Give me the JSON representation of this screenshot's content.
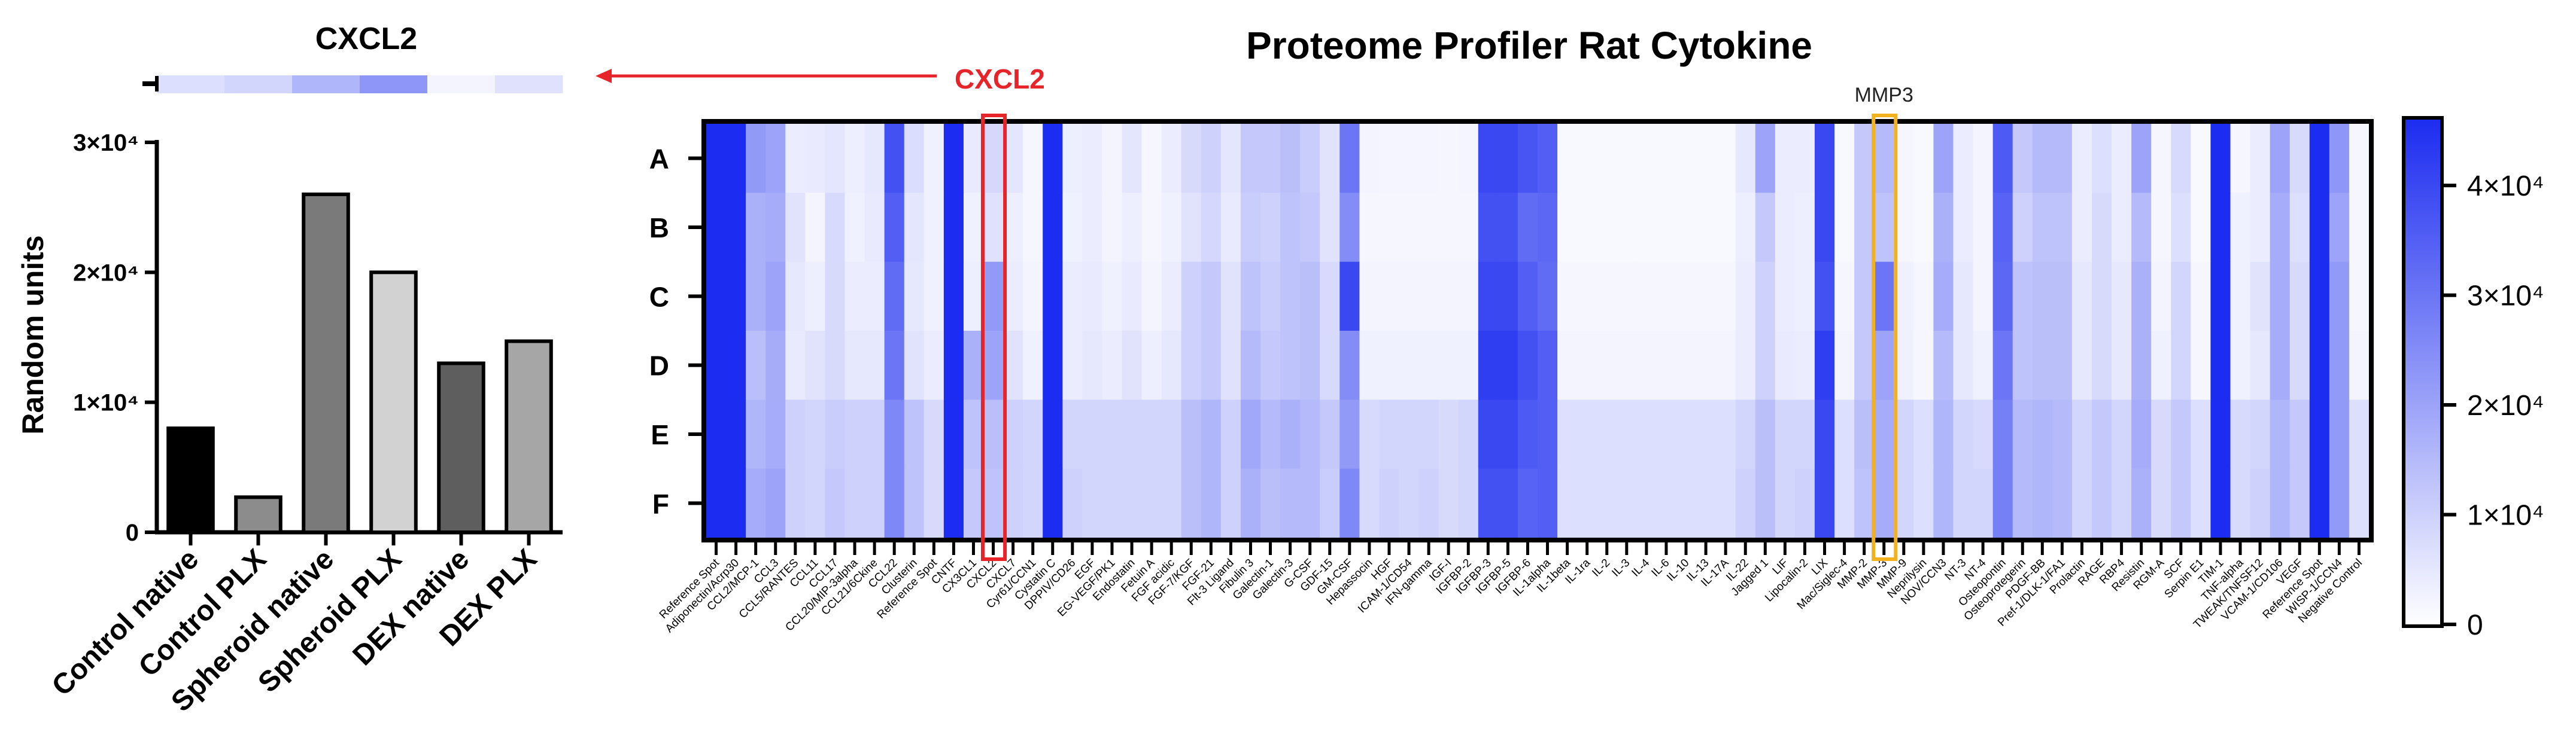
{
  "chart_data": [
    {
      "type": "bar",
      "title": "CXCL2",
      "xlabel": "",
      "ylabel": "Random units",
      "ylim": [
        0,
        30000
      ],
      "yticks": [
        0,
        10000,
        20000,
        30000
      ],
      "ytick_labels": [
        "0",
        "1×10⁴",
        "2×10⁴",
        "3×10⁴"
      ],
      "categories": [
        "Control native",
        "Control PLX",
        "Spheroid native",
        "Spheroid PLX",
        "DEX native",
        "DEX PLX"
      ],
      "values": [
        8000,
        2700,
        26000,
        20000,
        13000,
        14700
      ],
      "bar_colors": [
        "#000000",
        "#8c8c8c",
        "#7a7a7a",
        "#d2d2d2",
        "#5e5e5e",
        "#a6a6a6"
      ],
      "strip_values": [
        7000,
        9000,
        16000,
        23000,
        2500,
        6500
      ],
      "arrow_label": "CXCL2"
    },
    {
      "type": "heatmap",
      "title": "Proteome Profiler Rat Cytokine",
      "rows": [
        "A",
        "B",
        "C",
        "D",
        "E",
        "F"
      ],
      "columns": [
        "Reference Spot",
        "Adiponectin/Acrp30",
        "CCL2/MCP-1",
        "CCL3",
        "CCL5/RANTES",
        "CCL11",
        "CCL17",
        "CCL20/MIP-3alpha",
        "CCL21/6Ckine",
        "CCL22",
        "Clusterin",
        "Reference Spot",
        "CNTF",
        "CX3CL1",
        "CXCL2",
        "CXCL7",
        "Cyr61/CCN1",
        "Cystatin C",
        "DPPIV/CD26",
        "EGF",
        "EG-VEGF/PK1",
        "Endostatin",
        "Fetuin A",
        "FGF acidic",
        "FGF-7/KGF",
        "FGF-21",
        "Flt-3 Ligand",
        "Fibulin 3",
        "Galectin-1",
        "Galectin-3",
        "G-CSF",
        "GDF-15",
        "GM-CSF",
        "Hepassocin",
        "HGF",
        "ICAM-1/CD54",
        "IFN-gamma",
        "IGF-I",
        "IGFBP-2",
        "IGFBP-3",
        "IGFBP-5",
        "IGFBP-6",
        "IL-1alpha",
        "IL-1beta",
        "IL-1ra",
        "IL-2",
        "IL-3",
        "IL-4",
        "IL-6",
        "IL-10",
        "IL-13",
        "IL-17A",
        "IL-22",
        "Jagged 1",
        "LIF",
        "Lipocalin-2",
        "LIX",
        "Mac/Siglec-4",
        "MMP-2",
        "MMP-3",
        "MMP-9",
        "Neprilysin",
        "NOV/CCN3",
        "NT-3",
        "NT-4",
        "Osteopontin",
        "Osteoprotegerin",
        "PDGF-BB",
        "Pref-1/DLK-1/FA1",
        "Prolactin",
        "RAGE",
        "RBP4",
        "Resistin",
        "RGM-A",
        "SCF",
        "Serpin E1",
        "TIM-1",
        "TNF-alpha",
        "TWEAK/TNFSF12",
        "VCAM-1/CD106",
        "VEGF",
        "Reference Spot",
        "WISP-1/CCN4",
        "Negative Control"
      ],
      "colorbar": {
        "min": 0,
        "max": 46000,
        "ticks": [
          0,
          10000,
          20000,
          30000,
          40000
        ],
        "tick_labels": [
          "0",
          "1×10⁴",
          "2×10⁴",
          "3×10⁴",
          "4×10⁴"
        ],
        "color_low": "#ffffff",
        "color_high": "#1c2cf0"
      },
      "highlights": [
        {
          "column": "CXCL2",
          "label": "",
          "color": "#e8242b"
        },
        {
          "column": "MMP-3",
          "label": "MMP3",
          "color": "#f2b21e"
        }
      ],
      "values": [
        [
          46000,
          46000,
          22000,
          20000,
          4000,
          4500,
          5500,
          3500,
          5000,
          38000,
          7500,
          3000,
          46000,
          4500,
          8500,
          5500,
          2000,
          46000,
          3500,
          4000,
          2500,
          5500,
          2000,
          4000,
          8000,
          10000,
          5500,
          12000,
          12000,
          14000,
          11000,
          6000,
          30000,
          2500,
          2200,
          2200,
          2200,
          2000,
          2200,
          40000,
          40000,
          37000,
          35000,
          1500,
          1500,
          1500,
          1500,
          1500,
          1500,
          1500,
          1500,
          1500,
          5000,
          20000,
          4000,
          4000,
          40000,
          1500,
          12000,
          15000,
          2000,
          1500,
          20000,
          4000,
          2500,
          36000,
          12000,
          15000,
          15000,
          4000,
          7000,
          4000,
          20000,
          2000,
          8000,
          1500,
          46000,
          2000,
          4000,
          20000,
          8000,
          46000,
          23000,
          2000
        ],
        [
          46000,
          46000,
          17000,
          18000,
          6000,
          2500,
          8000,
          3000,
          4500,
          35000,
          5500,
          3000,
          46000,
          3000,
          6500,
          3500,
          2000,
          46000,
          3000,
          4000,
          2500,
          3500,
          2000,
          3000,
          6000,
          8500,
          4500,
          11000,
          10000,
          13000,
          12000,
          6000,
          25000,
          2000,
          2000,
          2000,
          2000,
          2000,
          2000,
          38000,
          38000,
          32000,
          33000,
          1500,
          1500,
          1500,
          1500,
          1500,
          1500,
          1500,
          1500,
          1500,
          3500,
          12000,
          4000,
          3500,
          40000,
          1500,
          12000,
          13000,
          2000,
          1500,
          17000,
          4000,
          2500,
          34000,
          10000,
          13000,
          13000,
          4000,
          8000,
          4000,
          15000,
          2000,
          7000,
          1500,
          46000,
          3000,
          4000,
          18000,
          7000,
          46000,
          20000,
          2000
        ],
        [
          46000,
          46000,
          17000,
          20000,
          5000,
          3500,
          8000,
          4000,
          4000,
          32000,
          5000,
          3000,
          46000,
          3500,
          22000,
          4000,
          2500,
          46000,
          4000,
          4500,
          3000,
          4500,
          2500,
          4000,
          10000,
          12000,
          6000,
          13000,
          11000,
          13000,
          14000,
          8000,
          40000,
          2500,
          2500,
          2500,
          2500,
          2500,
          2500,
          40000,
          40000,
          35000,
          32000,
          2000,
          2000,
          2000,
          2000,
          2000,
          2000,
          2000,
          2000,
          2000,
          4000,
          10000,
          4000,
          3500,
          38000,
          2000,
          12000,
          30000,
          3000,
          1800,
          18000,
          5000,
          2500,
          33000,
          13000,
          14000,
          14000,
          5000,
          8000,
          5000,
          17000,
          2500,
          9000,
          2000,
          46000,
          3000,
          6000,
          18000,
          8000,
          46000,
          22000,
          2000
        ],
        [
          46000,
          46000,
          14000,
          18000,
          4500,
          6000,
          8000,
          5000,
          5000,
          30000,
          6000,
          4000,
          46000,
          17000,
          20000,
          6000,
          3000,
          46000,
          4000,
          5000,
          4000,
          6000,
          3500,
          5000,
          10000,
          12000,
          6500,
          15000,
          12000,
          13000,
          14000,
          8000,
          25000,
          3000,
          3000,
          3000,
          3000,
          3000,
          3000,
          42000,
          42000,
          38000,
          35000,
          2500,
          2500,
          2500,
          2500,
          2500,
          2500,
          2500,
          2500,
          2500,
          4000,
          10000,
          4500,
          4000,
          42000,
          2500,
          12000,
          20000,
          3000,
          2000,
          15000,
          5000,
          3000,
          30000,
          13000,
          14000,
          14000,
          5000,
          8000,
          5000,
          17000,
          3000,
          9000,
          2000,
          46000,
          3000,
          5000,
          18000,
          8000,
          46000,
          22000,
          2500
        ],
        [
          46000,
          46000,
          16000,
          18000,
          10000,
          9000,
          11000,
          10000,
          10000,
          26000,
          13000,
          8000,
          46000,
          13000,
          14000,
          10000,
          9000,
          46000,
          9000,
          9000,
          9000,
          9000,
          9000,
          9000,
          14000,
          16000,
          10000,
          19000,
          15000,
          17000,
          15000,
          12000,
          22000,
          8000,
          9000,
          9000,
          9000,
          8000,
          9000,
          40000,
          40000,
          36000,
          35000,
          7000,
          7000,
          7000,
          7000,
          7000,
          7000,
          7000,
          7000,
          7000,
          9000,
          14000,
          9000,
          9000,
          40000,
          7000,
          14000,
          18000,
          9000,
          7000,
          16000,
          9000,
          8000,
          28000,
          15000,
          16000,
          15000,
          9000,
          12000,
          9000,
          18000,
          8000,
          12000,
          7000,
          46000,
          8000,
          9000,
          16000,
          12000,
          46000,
          22000,
          7000
        ],
        [
          46000,
          46000,
          18000,
          20000,
          10000,
          9000,
          12000,
          10000,
          10000,
          26000,
          13000,
          8000,
          46000,
          12000,
          13000,
          10000,
          9000,
          46000,
          10000,
          9000,
          9000,
          9000,
          9000,
          9000,
          14000,
          16000,
          10000,
          17000,
          14000,
          15000,
          15000,
          11000,
          26000,
          8000,
          10000,
          9000,
          10000,
          8000,
          9000,
          38000,
          38000,
          34000,
          35000,
          7000,
          7000,
          7000,
          7000,
          7000,
          7000,
          7000,
          7000,
          7000,
          10000,
          14000,
          9000,
          10000,
          40000,
          7000,
          13000,
          18000,
          9000,
          7000,
          16000,
          9000,
          9000,
          28000,
          15000,
          16000,
          15000,
          9000,
          12000,
          9000,
          17000,
          8000,
          12000,
          7000,
          46000,
          8000,
          10000,
          16000,
          12000,
          46000,
          22000,
          7000
        ]
      ]
    }
  ]
}
